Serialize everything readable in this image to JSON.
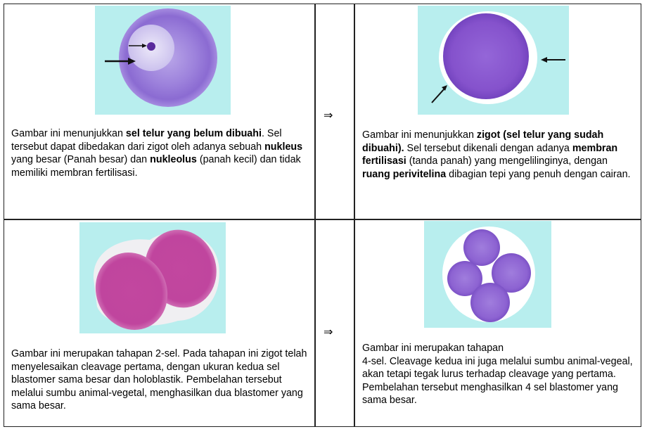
{
  "cells": [
    {
      "id": "unfertilized-egg",
      "description_parts": [
        {
          "text": "Gambar ini menunjukkan ",
          "bold": false
        },
        {
          "text": "sel telur yang belum dibuahi",
          "bold": true
        },
        {
          "text": ". Sel tersebut dapat dibedakan dari zigot oleh adanya sebuah ",
          "bold": false
        },
        {
          "text": "nukleus",
          "bold": true
        },
        {
          "text": " yang besar (Panah besar) dan ",
          "bold": false
        },
        {
          "text": "nukleolus",
          "bold": true
        },
        {
          "text": " (panah kecil) dan tidak memiliki membran fertilisasi.",
          "bold": false
        }
      ]
    },
    {
      "id": "zygote",
      "description_parts": [
        {
          "text": "Gambar ini menunjukkan ",
          "bold": false
        },
        {
          "text": "zigot (sel telur yang sudah dibuahi).",
          "bold": true
        },
        {
          "text": " Sel tersebut dikenali dengan adanya ",
          "bold": false
        },
        {
          "text": "membran fertilisasi",
          "bold": true
        },
        {
          "text": " (tanda panah) yang mengelilinginya, dengan ",
          "bold": false
        },
        {
          "text": "ruang perivitelina",
          "bold": true
        },
        {
          "text": " dibagian tepi yang penuh dengan cairan.",
          "bold": false
        }
      ]
    },
    {
      "id": "two-cell-stage",
      "description_parts": [
        {
          "text": "Gambar ini merupakan tahapan 2-sel.  Pada tahapan ini zigot telah menyelesaikan cleavage pertama, dengan ukuran kedua sel blastomer sama besar dan holoblastik. Pembelahan tersebut melalui sumbu animal-vegetal, menghasilkan dua blastomer yang sama besar.",
          "bold": false
        }
      ]
    },
    {
      "id": "four-cell-stage",
      "description_parts": [
        {
          "text": "Gambar ini merupakan tahapan",
          "bold": false
        },
        {
          "text": "\n",
          "bold": false
        },
        {
          "text": "4-sel. Cleavage kedua ini juga melalui sumbu animal-vegeal, akan tetapi tegak lurus terhadap cleavage yang pertama. Pembelahan tersebut menghasilkan 4 sel blastomer yang sama besar.",
          "bold": false
        }
      ]
    }
  ],
  "progression_symbol": "⇒",
  "colors": {
    "photo_background": "#b3ecec",
    "egg_purple": "#8e5fd0",
    "blastomere_magenta": "#c0459e"
  }
}
